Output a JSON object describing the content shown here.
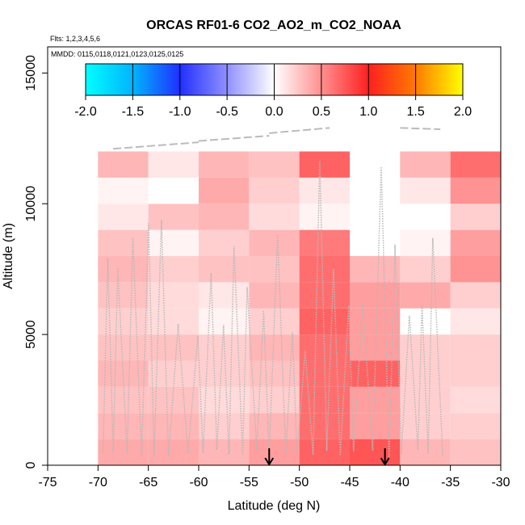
{
  "chart_data": {
    "type": "heatmap",
    "title": "ORCAS RF01-6 CO2_AO2_m_CO2_NOAA",
    "flights_label": "Flts: 1,2,3,4,5,6",
    "dates_label": "MMDD: 0115,0118,0121,0123,0125,0125",
    "xlabel": "Latitude (deg N)",
    "ylabel": "Altitude (m)",
    "xlim": [
      -75,
      -30
    ],
    "ylim": [
      0,
      16000
    ],
    "x_ticks": [
      "-75",
      "-70",
      "-65",
      "-60",
      "-55",
      "-50",
      "-45",
      "-40",
      "-35",
      "-30"
    ],
    "x_tick_values": [
      -75,
      -70,
      -65,
      -60,
      -55,
      -50,
      -45,
      -40,
      -35,
      -30
    ],
    "y_ticks": [
      "0",
      "5000",
      "10000",
      "15000"
    ],
    "y_tick_values": [
      0,
      5000,
      10000,
      15000
    ],
    "colorbar": {
      "min": -2.0,
      "max": 2.0,
      "tick_labels": [
        "-2.0",
        "-1.5",
        "-1.0",
        "-0.5",
        "0.0",
        "0.5",
        "1.0",
        "1.5",
        "2.0"
      ],
      "tick_values": [
        -2.0,
        -1.5,
        -1.0,
        -0.5,
        0.0,
        0.5,
        1.0,
        1.5,
        2.0
      ]
    },
    "lat_bins": [
      -70,
      -65,
      -60,
      -55,
      -50,
      -45,
      -40,
      -35,
      -30
    ],
    "alt_bins": [
      0,
      1000,
      2000,
      3000,
      4000,
      5000,
      6000,
      7000,
      8000,
      9000,
      10000,
      11000,
      12000
    ],
    "values": [
      [
        0.35,
        0.35,
        0.3,
        0.4,
        0.65,
        0.7,
        0.3,
        0.25,
        null
      ],
      [
        0.3,
        0.3,
        0.2,
        0.3,
        0.6,
        0.4,
        0.2,
        0.2,
        null
      ],
      [
        0.25,
        0.25,
        0.15,
        0.2,
        0.6,
        0.4,
        0.2,
        0.15,
        null
      ],
      [
        0.3,
        0.2,
        0.2,
        0.25,
        0.6,
        0.65,
        0.2,
        0.2,
        null
      ],
      [
        0.25,
        0.25,
        0.2,
        0.3,
        0.6,
        0.4,
        0.2,
        0.2,
        null
      ],
      [
        0.2,
        0.15,
        0.05,
        0.2,
        0.65,
        0.4,
        0.0,
        0.1,
        null
      ],
      [
        0.25,
        0.15,
        0.1,
        0.3,
        0.6,
        0.4,
        0.35,
        0.2,
        null
      ],
      [
        0.3,
        0.2,
        0.25,
        0.25,
        0.6,
        0.3,
        0.2,
        0.45,
        null
      ],
      [
        0.25,
        0.05,
        0.2,
        0.3,
        0.55,
        null,
        0.05,
        0.4,
        null
      ],
      [
        0.1,
        0.25,
        0.3,
        0.15,
        0.05,
        null,
        0.0,
        0.2,
        null
      ],
      [
        0.05,
        0.0,
        0.35,
        0.2,
        0.1,
        null,
        0.1,
        0.45,
        null
      ],
      [
        0.3,
        0.1,
        0.3,
        0.25,
        0.65,
        null,
        0.3,
        0.6,
        null
      ]
    ],
    "markers": [
      {
        "label": "arrow",
        "lat": -53.0,
        "alt": 0
      },
      {
        "label": "arrow",
        "lat": -41.5,
        "alt": 0
      }
    ]
  }
}
